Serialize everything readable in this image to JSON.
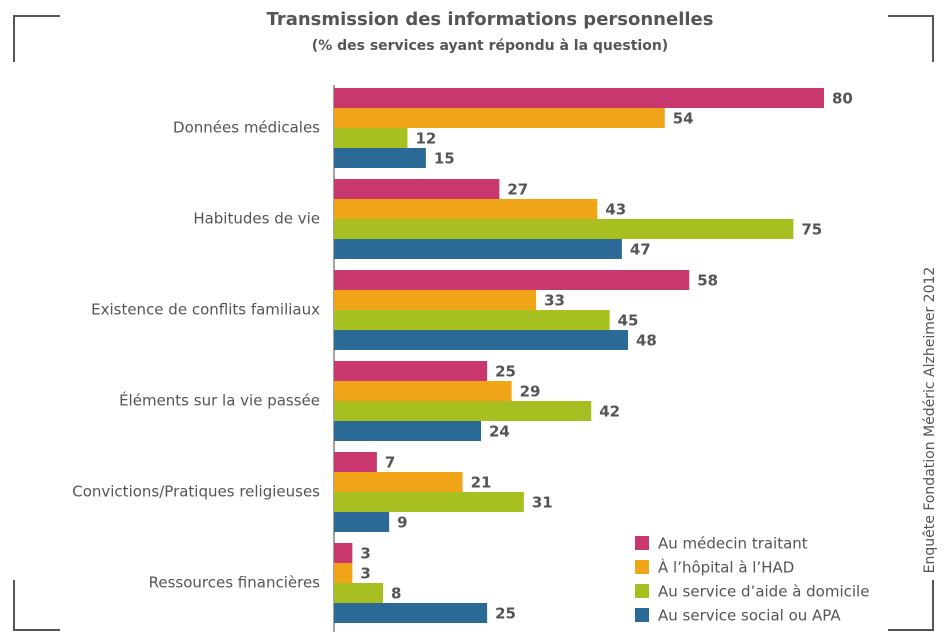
{
  "chart_data": {
    "type": "hbar",
    "title": "Transmission des informations personnelles",
    "subtitle": "(% des services ayant répondu à la question)",
    "source": "Enquête Fondation Médéric Alzheimer 2012",
    "categories": [
      "Données médicales",
      "Habitudes de vie",
      "Existence de conflits familiaux",
      "Éléments sur la vie passée",
      "Convictions/Pratiques religieuses",
      "Ressources financières"
    ],
    "series": [
      {
        "name": "Au médecin traitant",
        "color": "#c8386e",
        "values": [
          80,
          27,
          58,
          25,
          7,
          3
        ]
      },
      {
        "name": "À l’hôpital à l’HAD",
        "color": "#f0a418",
        "values": [
          54,
          43,
          33,
          29,
          21,
          3
        ]
      },
      {
        "name": "Au service d’aide à domicile",
        "color": "#a8bf22",
        "values": [
          12,
          75,
          45,
          42,
          31,
          8
        ]
      },
      {
        "name": "Au service social ou APA",
        "color": "#2b6a96",
        "values": [
          15,
          47,
          48,
          24,
          9,
          25
        ]
      }
    ],
    "legend": "bottom-right"
  }
}
